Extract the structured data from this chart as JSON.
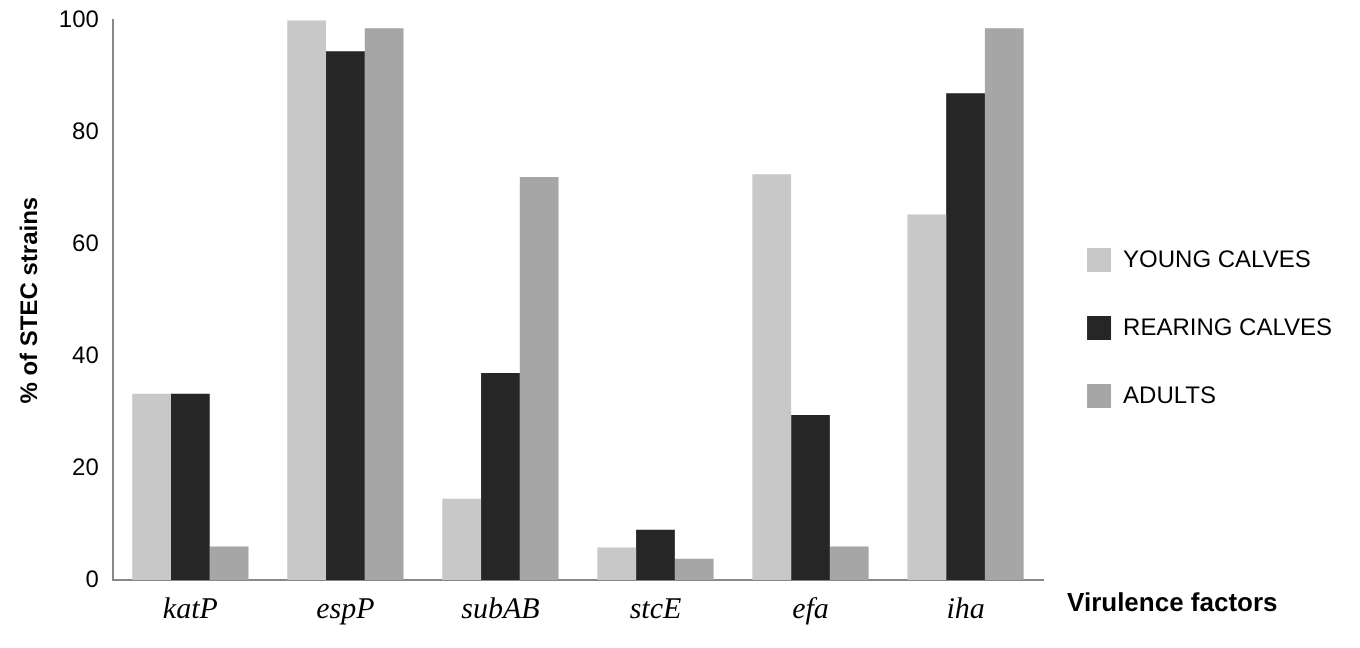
{
  "chart_data": {
    "type": "bar",
    "ylabel": "% of STEC strains",
    "xlabel": "Virulence factors",
    "categories": [
      "katP",
      "espP",
      "subAB",
      "stcE",
      "efa",
      "iha"
    ],
    "series": [
      {
        "name": "YOUNG CALVES",
        "color": "#c8c8c8",
        "values": [
          33.3,
          100,
          14.5,
          5.8,
          72.5,
          65.3
        ]
      },
      {
        "name": "REARING CALVES",
        "color": "#262626",
        "values": [
          33.3,
          94.5,
          37,
          9,
          29.5,
          87
        ]
      },
      {
        "name": "ADULTS",
        "color": "#a6a6a6",
        "values": [
          6,
          98.6,
          72,
          3.8,
          6,
          98.6
        ]
      }
    ],
    "ylim": [
      0,
      100
    ],
    "yticks": [
      0,
      20,
      40,
      60,
      80,
      100
    ],
    "grid": false,
    "legend": "right"
  }
}
